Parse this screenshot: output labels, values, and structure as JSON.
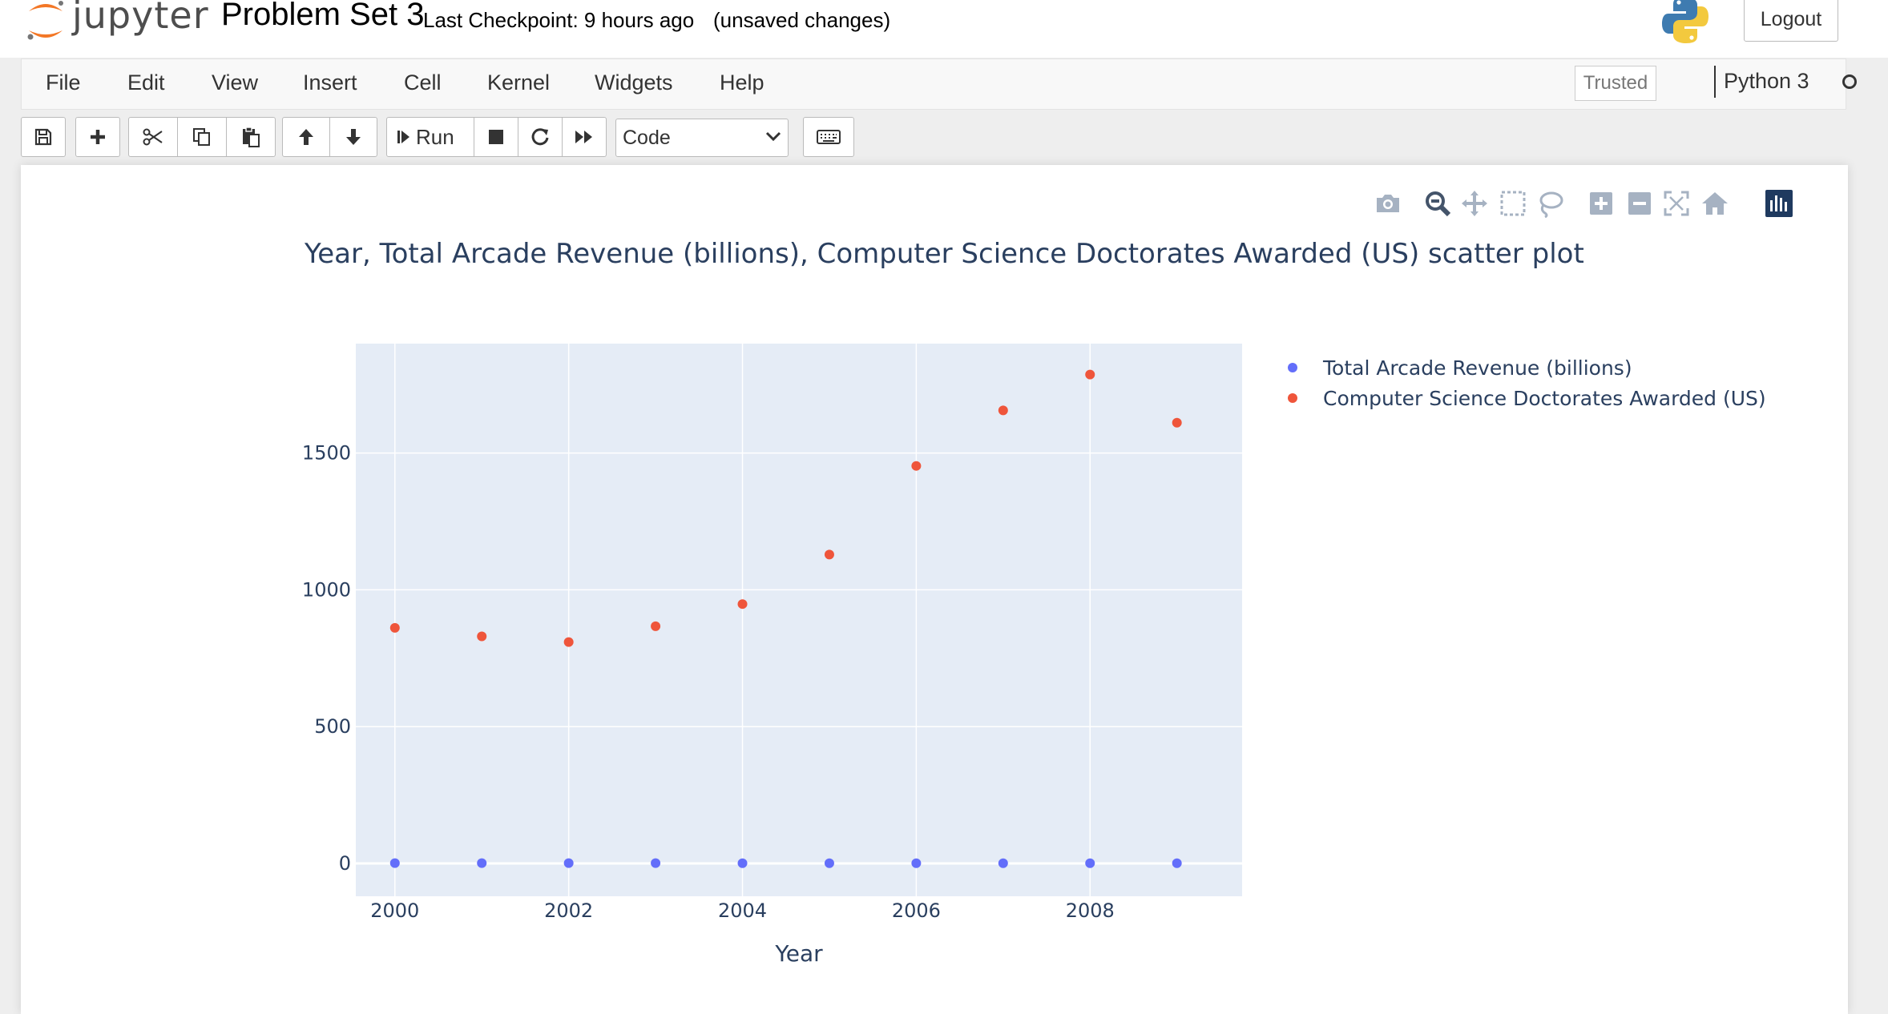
{
  "header": {
    "logo_text": "jupyter",
    "notebook_name": "Problem Set 3",
    "checkpoint": "Last Checkpoint: 9 hours ago",
    "unsaved": "(unsaved changes)",
    "logout_label": "Logout"
  },
  "menubar": {
    "items": [
      "File",
      "Edit",
      "View",
      "Insert",
      "Cell",
      "Kernel",
      "Widgets",
      "Help"
    ],
    "trusted_label": "Trusted",
    "kernel_name": "Python 3"
  },
  "toolbar": {
    "run_label": "Run",
    "cell_type": "Code",
    "icons": [
      "save-icon",
      "plus-icon",
      "scissors-icon",
      "copy-icon",
      "paste-icon",
      "arrow-up-icon",
      "arrow-down-icon",
      "step-forward-icon",
      "stop-icon",
      "restart-icon",
      "fast-forward-icon",
      "keyboard-icon"
    ]
  },
  "modebar": {
    "icons": [
      "camera-icon",
      "zoom-icon",
      "pan-icon",
      "box-select-icon",
      "lasso-select-icon",
      "zoom-in-icon",
      "zoom-out-icon",
      "autoscale-icon",
      "reset-axes-icon",
      "plotly-logo-icon"
    ]
  },
  "colors": {
    "series_blue": "#636efa",
    "series_red": "#EF553B",
    "plot_bg": "#e5ecf6",
    "text": "#2a3f5f",
    "jupyter_orange": "#f37726"
  },
  "chart_data": {
    "type": "scatter",
    "title": "Year, Total Arcade Revenue (billions), Computer Science Doctorates Awarded (US) scatter plot",
    "xlabel": "Year",
    "ylabel": "",
    "x": [
      2000,
      2001,
      2002,
      2003,
      2004,
      2005,
      2006,
      2007,
      2008,
      2009
    ],
    "xlim": [
      1999.55,
      2009.75
    ],
    "ylim": [
      -120,
      1900
    ],
    "xticks": [
      2000,
      2002,
      2004,
      2006,
      2008
    ],
    "yticks": [
      0,
      500,
      1000,
      1500
    ],
    "grid": true,
    "legend_position": "right",
    "series": [
      {
        "name": "Total Arcade Revenue (billions)",
        "color": "#636efa",
        "values": [
          1.2,
          1.1,
          1.0,
          1.0,
          0.9,
          0.8,
          0.7,
          0.7,
          0.6,
          0.6
        ]
      },
      {
        "name": "Computer Science Doctorates Awarded (US)",
        "color": "#EF553B",
        "values": [
          861,
          830,
          809,
          867,
          948,
          1129,
          1453,
          1656,
          1787,
          1611
        ]
      }
    ]
  }
}
